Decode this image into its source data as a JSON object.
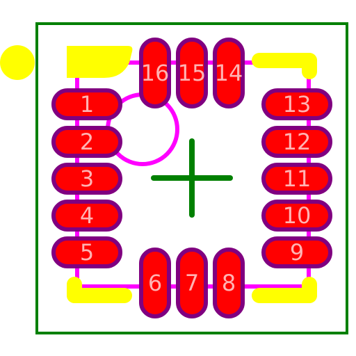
{
  "colors": {
    "background": "#ffffff",
    "courtyard": "#008000",
    "silkscreen": "#ff00ff",
    "fab_marks": "#ffff00",
    "pad_fill": "#ff0000",
    "pad_outline": "#800080",
    "center_cross": "#008000",
    "pad_label": "#ffb3b3"
  },
  "footprint": {
    "pin1_marker": "yellow dot",
    "orientation_circle": "magenta circle",
    "center_marker": "green cross",
    "pads": [
      {
        "label": "1"
      },
      {
        "label": "2"
      },
      {
        "label": "3"
      },
      {
        "label": "4"
      },
      {
        "label": "5"
      },
      {
        "label": "6"
      },
      {
        "label": "7"
      },
      {
        "label": "8"
      },
      {
        "label": "9"
      },
      {
        "label": "10"
      },
      {
        "label": "11"
      },
      {
        "label": "12"
      },
      {
        "label": "13"
      },
      {
        "label": "14"
      },
      {
        "label": "15"
      },
      {
        "label": "16"
      }
    ]
  }
}
